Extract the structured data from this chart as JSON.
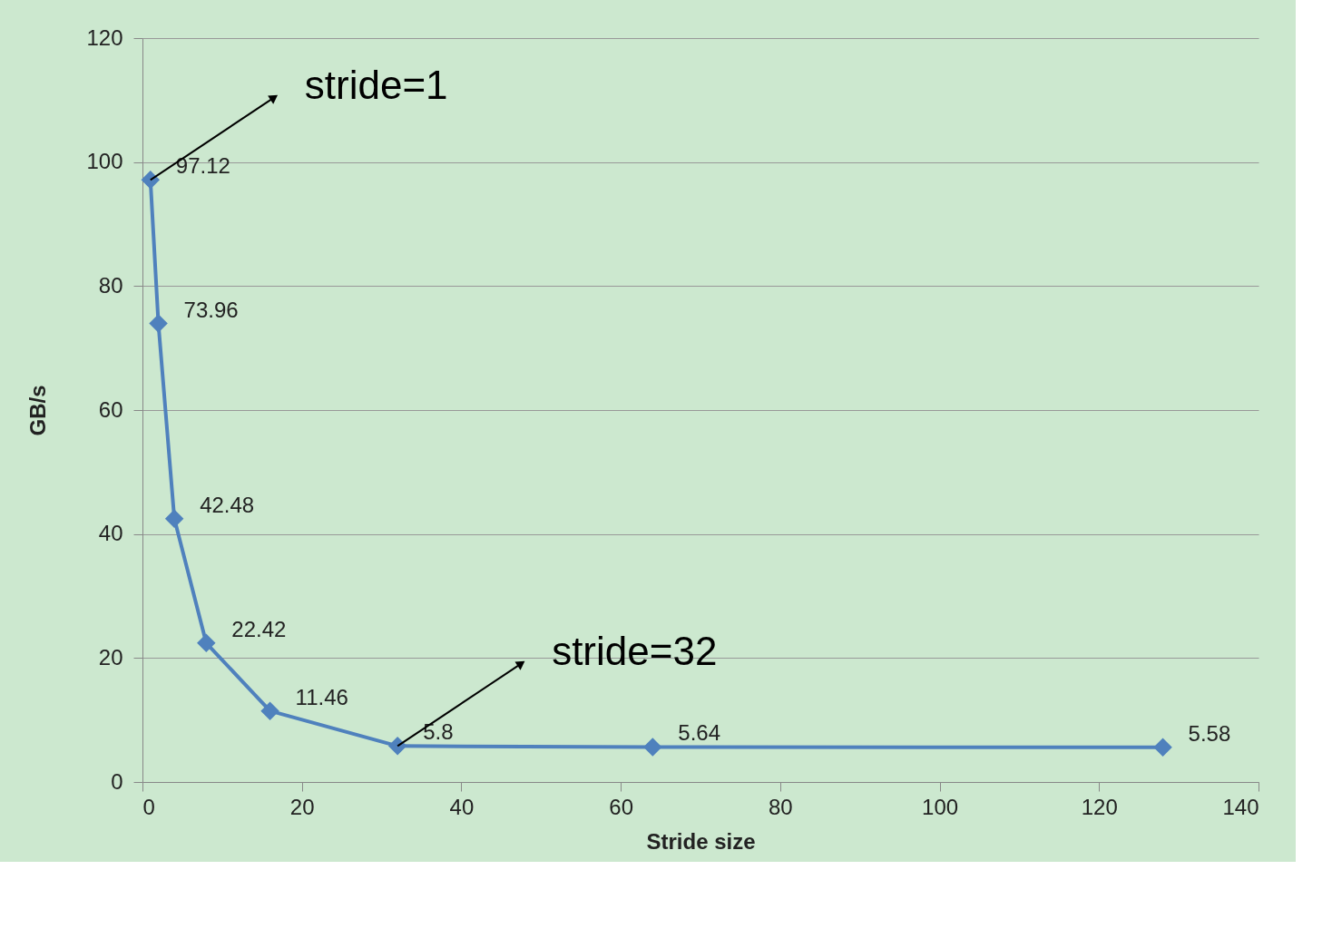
{
  "chart_data": {
    "type": "line",
    "xlabel": "Stride size",
    "ylabel": "GB/s",
    "x": [
      1,
      2,
      4,
      8,
      16,
      32,
      64,
      128
    ],
    "series": [
      {
        "color": "#4f81bd",
        "values": [
          97.12,
          73.96,
          42.48,
          22.42,
          11.46,
          5.8,
          5.64,
          5.58
        ]
      }
    ],
    "xlim": [
      0,
      140
    ],
    "xticks": [
      0,
      20,
      40,
      60,
      80,
      100,
      120,
      140
    ],
    "ylim": [
      0,
      120
    ],
    "yticks": [
      0,
      20,
      40,
      60,
      80,
      100,
      120
    ],
    "grid": "y",
    "marker": "diamond",
    "line_style": "solid",
    "data_labels": true,
    "annotations": [
      {
        "text": "stride=1",
        "x": 1,
        "y": 97.12
      },
      {
        "text": "stride=32",
        "x": 32,
        "y": 5.8
      }
    ]
  }
}
